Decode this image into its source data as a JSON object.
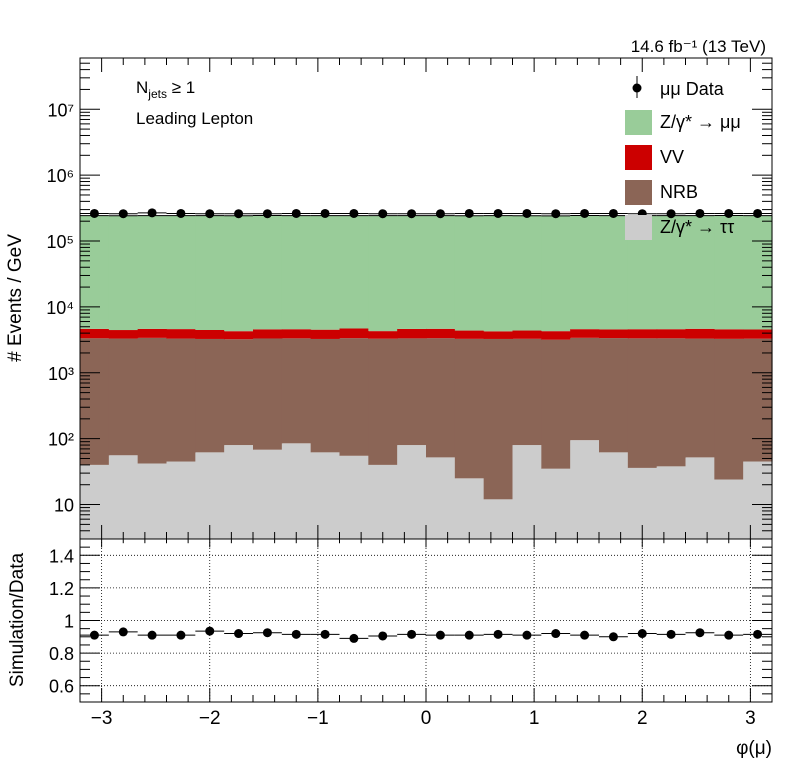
{
  "lumi_label": "14.6 fb⁻¹ (13 TeV)",
  "annotations": [
    "N_jets ≥ 1",
    "Leading Lepton"
  ],
  "chart_data": [
    {
      "type": "stacked-histogram",
      "xlabel": "",
      "ylabel": "# Events / GeV",
      "yscale": "log",
      "ylim": [
        3,
        60000000
      ],
      "x_bin_edges": [
        -3.2,
        -2.9333,
        -2.6667,
        -2.4,
        -2.1333,
        -1.8667,
        -1.6,
        -1.3333,
        -1.0667,
        -0.8,
        -0.5333,
        -0.2667,
        0.0,
        0.2667,
        0.5333,
        0.8,
        1.0667,
        1.3333,
        1.6,
        1.8667,
        2.1333,
        2.4,
        2.6667,
        2.9333,
        3.2
      ],
      "y_ticks": [
        {
          "value": 10000000,
          "label": "10⁷"
        },
        {
          "value": 1000000,
          "label": "10⁶"
        },
        {
          "value": 100000,
          "label": "10⁵"
        },
        {
          "value": 10000,
          "label": "10⁴"
        },
        {
          "value": 1000,
          "label": "10³"
        },
        {
          "value": 100,
          "label": "10²"
        },
        {
          "value": 10,
          "label": "10"
        }
      ],
      "series": [
        {
          "name": "Z/γ* → ττ",
          "color": "#cccccc",
          "values": [
            40,
            56,
            42,
            45,
            62,
            80,
            68,
            85,
            62,
            55,
            40,
            80,
            52,
            25,
            12,
            80,
            35,
            95,
            62,
            36,
            38,
            52,
            24,
            45
          ]
        },
        {
          "name": "NRB",
          "color": "#8b6556",
          "values": [
            3300,
            3250,
            3350,
            3260,
            3200,
            3150,
            3250,
            3250,
            3200,
            3300,
            3250,
            3250,
            3300,
            3250,
            3250,
            3200,
            3150,
            3300,
            3300,
            3300,
            3300,
            3250,
            3250,
            3250
          ]
        },
        {
          "name": "VV",
          "color": "#cc0000",
          "values": [
            1300,
            1150,
            1250,
            1300,
            1200,
            1050,
            1250,
            1250,
            1250,
            1350,
            1000,
            1300,
            1300,
            1100,
            1000,
            1100,
            1100,
            1200,
            1200,
            1250,
            1250,
            1350,
            1300,
            1250
          ]
        },
        {
          "name": "Z/γ* → μμ",
          "color": "#99cc99",
          "values": [
            238000,
            238000,
            238000,
            238000,
            239000,
            238000,
            239000,
            238000,
            238000,
            238000,
            239000,
            238000,
            238000,
            238000,
            239000,
            238000,
            237000,
            239000,
            238000,
            238000,
            238000,
            238000,
            239000,
            238000
          ]
        }
      ],
      "data": {
        "name": "μμ Data",
        "values": [
          262000,
          260000,
          268000,
          262000,
          260000,
          260000,
          260000,
          262000,
          262000,
          262000,
          260000,
          260000,
          260000,
          262000,
          262000,
          262000,
          260000,
          262000,
          262000,
          260000,
          260000,
          262000,
          262000,
          262000
        ]
      },
      "legend_placement": "top-right"
    },
    {
      "type": "ratio",
      "xlabel": "φ(μ)",
      "ylabel": "Simulation/Data",
      "ylim": [
        0.5,
        1.5
      ],
      "xlim": [
        -3.2,
        3.2
      ],
      "y_ticks": [
        0.6,
        0.8,
        1.0,
        1.2,
        1.4
      ],
      "y_tick_labels": [
        "0.6",
        "0.8",
        "1",
        "1.2",
        "1.4"
      ],
      "x_ticks": [
        -3,
        -2,
        -1,
        0,
        1,
        2,
        3
      ],
      "x_tick_labels": [
        "−3",
        "−2",
        "−1",
        "0",
        "1",
        "2",
        "3"
      ],
      "grid": true,
      "values": [
        0.91,
        0.93,
        0.91,
        0.91,
        0.935,
        0.92,
        0.925,
        0.915,
        0.915,
        0.89,
        0.905,
        0.915,
        0.91,
        0.91,
        0.915,
        0.91,
        0.92,
        0.91,
        0.9,
        0.92,
        0.915,
        0.925,
        0.91,
        0.915
      ]
    }
  ]
}
